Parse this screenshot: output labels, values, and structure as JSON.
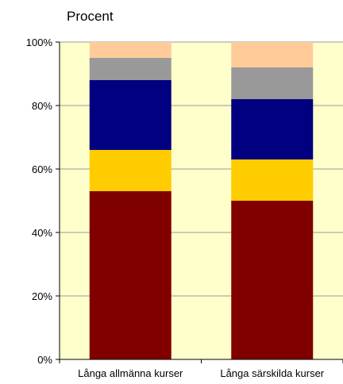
{
  "chart_data": {
    "type": "bar",
    "stacked": true,
    "y_unit_label": "Procent",
    "categories": [
      "Långa allmänna kurser",
      "Långa särskilda kurser"
    ],
    "series": [
      {
        "values": [
          53,
          50
        ],
        "color": "#800000"
      },
      {
        "values": [
          13,
          13
        ],
        "color": "#FFCC00"
      },
      {
        "values": [
          22,
          19
        ],
        "color": "#000080"
      },
      {
        "values": [
          7,
          10
        ],
        "color": "#999999"
      },
      {
        "values": [
          5,
          8
        ],
        "color": "#FFCC99"
      }
    ],
    "ylim": [
      0,
      100
    ],
    "yticks": [
      "0%",
      "20%",
      "40%",
      "60%",
      "80%",
      "100%"
    ],
    "plot_background": "#FFFFCC",
    "grid": true
  }
}
